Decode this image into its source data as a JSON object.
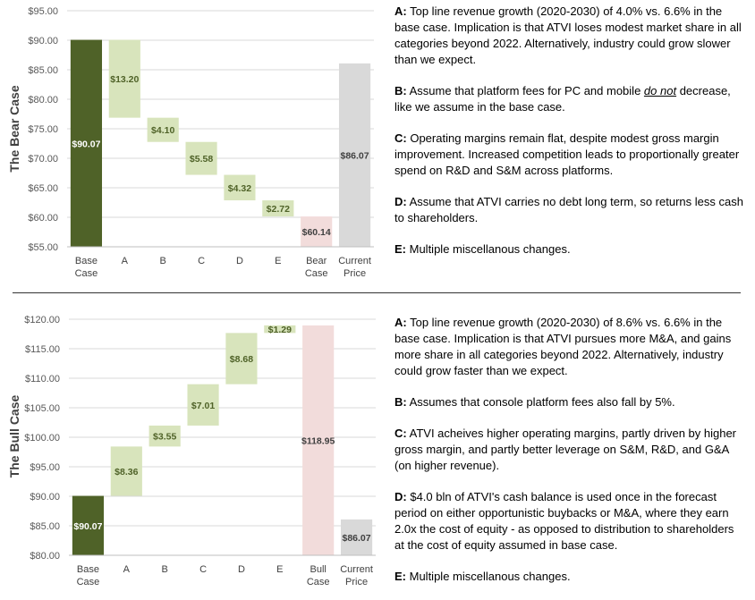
{
  "chart_data": [
    {
      "type": "bar",
      "subtype": "waterfall",
      "title": "The Bear Case",
      "ylim": [
        55,
        95
      ],
      "yticks": [
        "$55.00",
        "$60.00",
        "$65.00",
        "$70.00",
        "$75.00",
        "$80.00",
        "$85.00",
        "$90.00",
        "$95.00"
      ],
      "ytick_values": [
        55,
        60,
        65,
        70,
        75,
        80,
        85,
        90,
        95
      ],
      "categories": [
        "Base\nCase",
        "A",
        "B",
        "C",
        "D",
        "E",
        "Bear\nCase",
        "Current\nPrice"
      ],
      "bars": [
        {
          "low": 55,
          "high": 90.07,
          "label": "$90.07",
          "color": "#4f6228",
          "label_color": "#ffffff"
        },
        {
          "low": 76.87,
          "high": 90.07,
          "label": "$13.20",
          "color": "#d8e4bc",
          "label_color": "#4f6228"
        },
        {
          "low": 72.77,
          "high": 76.87,
          "label": "$4.10",
          "color": "#d8e4bc",
          "label_color": "#4f6228"
        },
        {
          "low": 67.19,
          "high": 72.77,
          "label": "$5.58",
          "color": "#d8e4bc",
          "label_color": "#4f6228"
        },
        {
          "low": 62.87,
          "high": 67.19,
          "label": "$4.32",
          "color": "#d8e4bc",
          "label_color": "#4f6228"
        },
        {
          "low": 60.14,
          "high": 62.87,
          "label": "$2.72",
          "color": "#d8e4bc",
          "label_color": "#4f6228"
        },
        {
          "low": 55,
          "high": 60.14,
          "label": "$60.14",
          "color": "#f2dcdb",
          "label_color": "#404040"
        },
        {
          "low": 55,
          "high": 86.07,
          "label": "$86.07",
          "color": "#d9d9d9",
          "label_color": "#404040"
        }
      ]
    },
    {
      "type": "bar",
      "subtype": "waterfall",
      "title": "The Bull Case",
      "ylim": [
        80,
        120
      ],
      "yticks": [
        "$80.00",
        "$85.00",
        "$90.00",
        "$95.00",
        "$100.00",
        "$105.00",
        "$110.00",
        "$115.00",
        "$120.00"
      ],
      "ytick_values": [
        80,
        85,
        90,
        95,
        100,
        105,
        110,
        115,
        120
      ],
      "categories": [
        "Base\nCase",
        "A",
        "B",
        "C",
        "D",
        "E",
        "Bull\nCase",
        "Current\nPrice"
      ],
      "bars": [
        {
          "low": 80,
          "high": 90.07,
          "label": "$90.07",
          "color": "#4f6228",
          "label_color": "#ffffff"
        },
        {
          "low": 90.07,
          "high": 98.43,
          "label": "$8.36",
          "color": "#d8e4bc",
          "label_color": "#4f6228"
        },
        {
          "low": 98.43,
          "high": 101.98,
          "label": "$3.55",
          "color": "#d8e4bc",
          "label_color": "#4f6228"
        },
        {
          "low": 101.98,
          "high": 108.99,
          "label": "$7.01",
          "color": "#d8e4bc",
          "label_color": "#4f6228"
        },
        {
          "low": 108.99,
          "high": 117.67,
          "label": "$8.68",
          "color": "#d8e4bc",
          "label_color": "#4f6228"
        },
        {
          "low": 117.67,
          "high": 118.96,
          "label": "$1.29",
          "color": "#d8e4bc",
          "label_color": "#4f6228"
        },
        {
          "low": 80,
          "high": 118.95,
          "label": "$118.95",
          "color": "#f2dcdb",
          "label_color": "#404040"
        },
        {
          "low": 80,
          "high": 86.07,
          "label": "$86.07",
          "color": "#d9d9d9",
          "label_color": "#404040"
        }
      ]
    }
  ],
  "bear_notes": [
    {
      "key": "A:",
      "text": "Top line revenue growth (2020-2030) of 4.0% vs. 6.6% in the base case. Implication is that ATVI loses modest market share in all categories beyond 2022. Alternatively, industry could grow slower than we expect."
    },
    {
      "key": "B:",
      "text_before": "Assume that platform fees for PC and mobile ",
      "emph": "do not",
      "text_after": " decrease, like we assume in the base case."
    },
    {
      "key": "C:",
      "text": "Operating margins remain flat, despite modest gross margin improvement. Increased competition leads to proportionally greater spend on R&D and S&M across platforms."
    },
    {
      "key": "D:",
      "text": "Assume that ATVI carries no debt long term, so returns less cash to shareholders."
    },
    {
      "key": "E:",
      "text": "Multiple miscellanous changes."
    }
  ],
  "bull_notes": [
    {
      "key": "A:",
      "text": "Top line revenue growth (2020-2030) of 8.6% vs. 6.6% in the base case. Implication is that ATVI pursues more M&A, and gains more share in all categories beyond 2022. Alternatively, industry could grow faster than we expect."
    },
    {
      "key": "B:",
      "text": "Assumes that console platform fees also fall by 5%."
    },
    {
      "key": "C:",
      "text": "ATVI acheives higher operating margins, partly driven by higher gross margin, and partly better leverage on S&M, R&D, and G&A (on higher revenue)."
    },
    {
      "key": "D:",
      "text": "$4.0 bln of ATVI's cash balance is used once in the forecast period on either opportunistic buybacks or M&A, where they earn 2.0x the cost of equity - as opposed to distribution to shareholders at the cost of equity assumed in base case."
    },
    {
      "key": "E:",
      "text": "Multiple miscellanous changes."
    }
  ]
}
